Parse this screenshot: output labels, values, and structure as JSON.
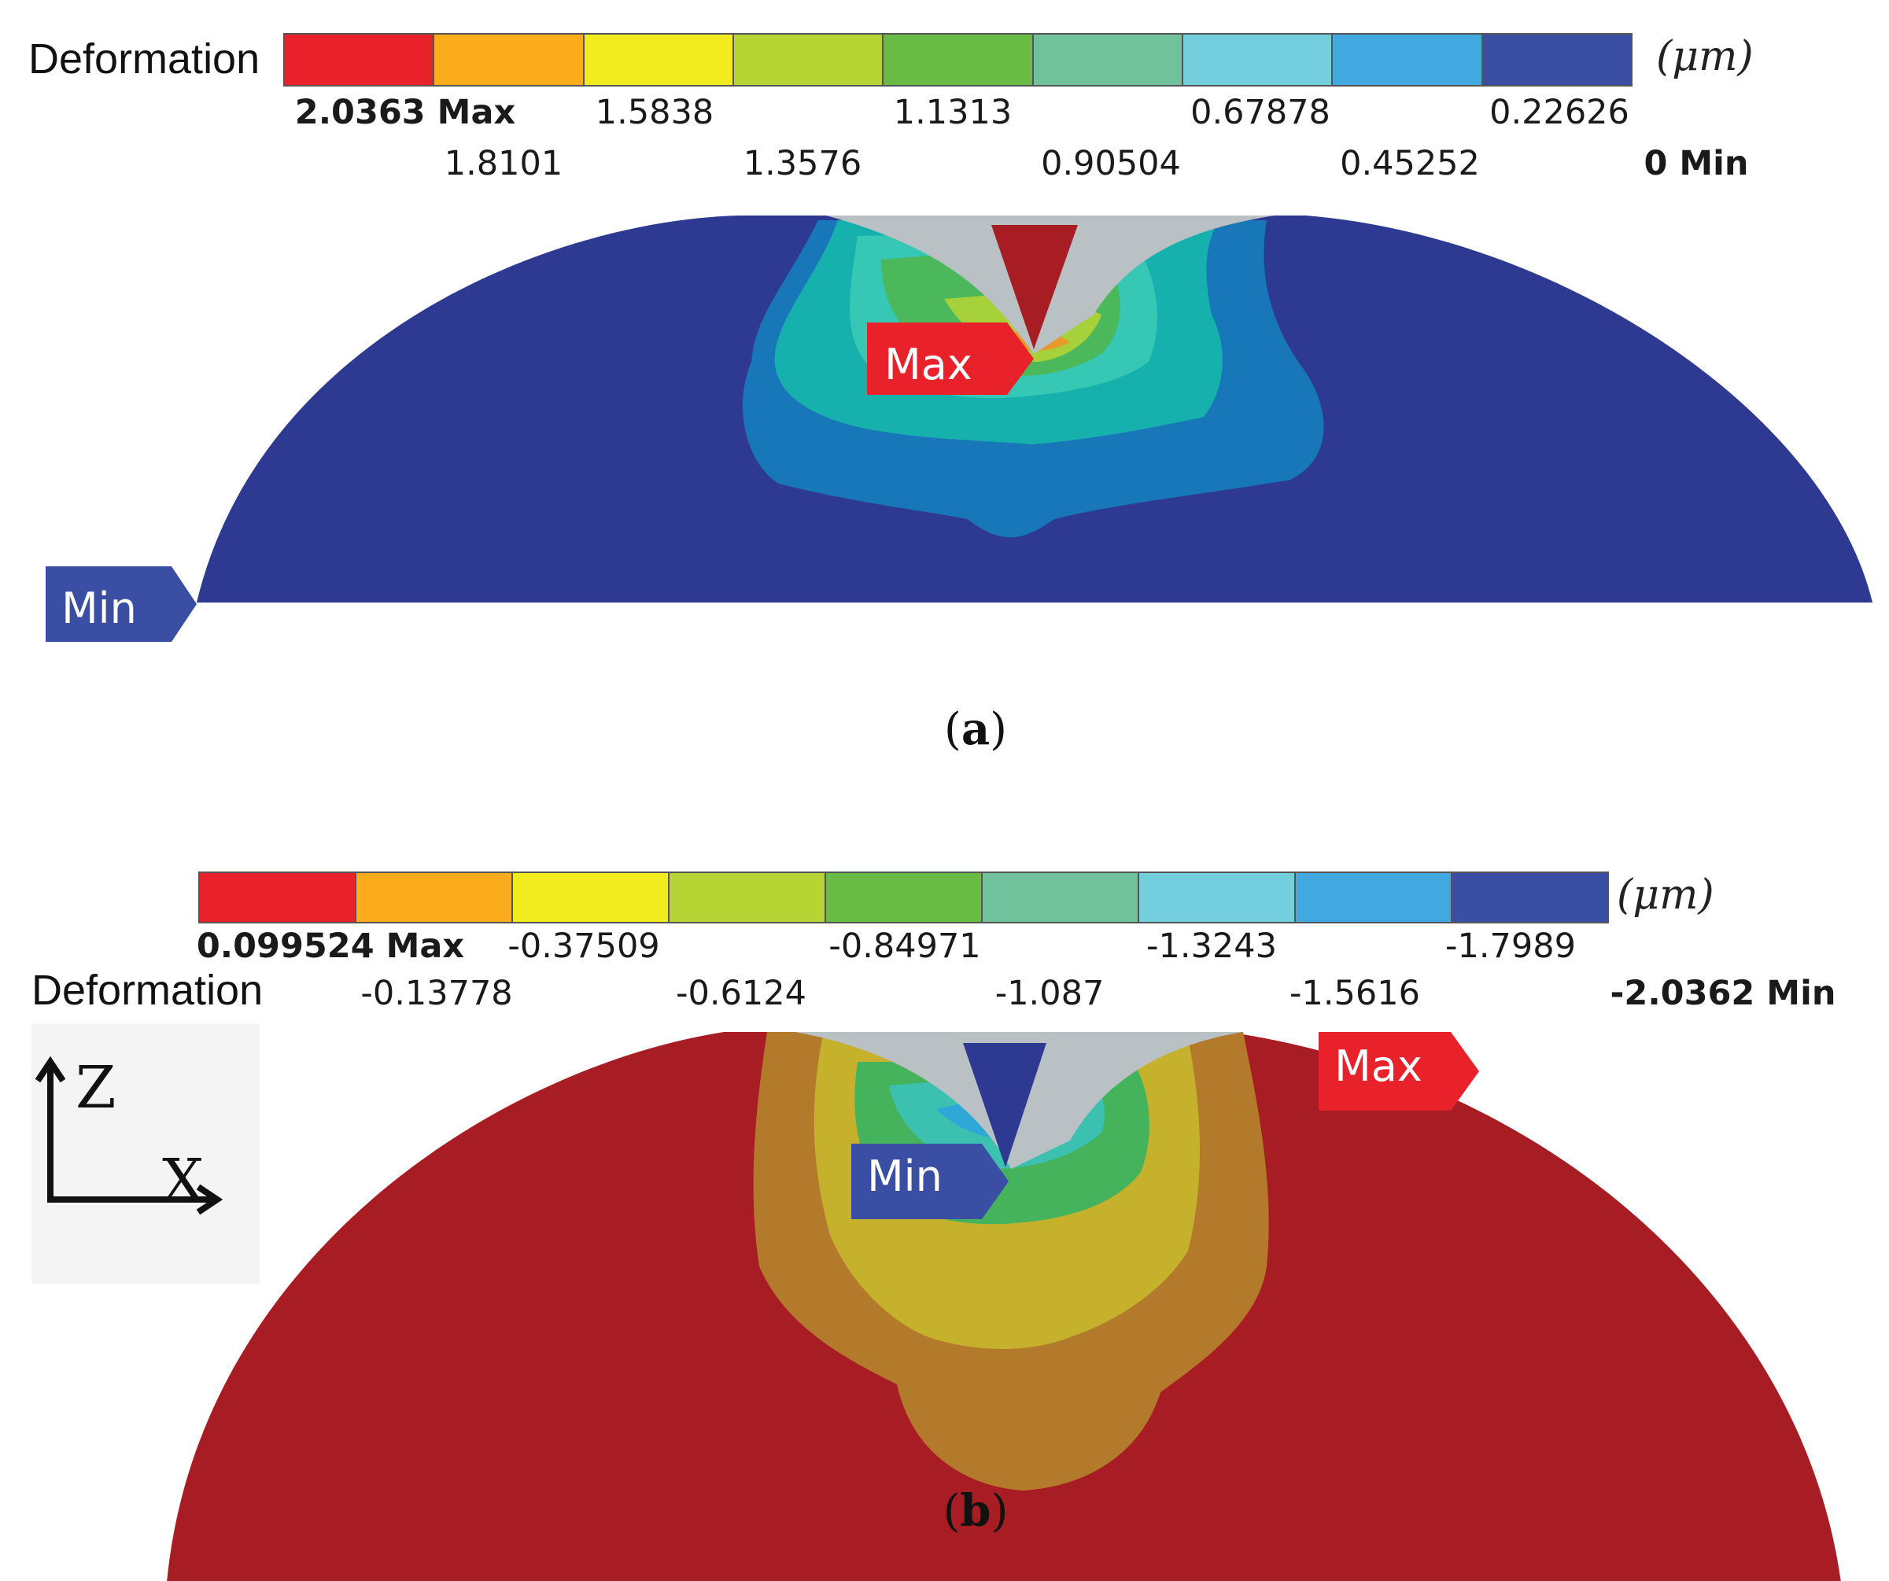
{
  "colors": {
    "scale": [
      "#e8212a",
      "#fbac1c",
      "#f2ec1e",
      "#b6d434",
      "#6abb45",
      "#70c29c",
      "#73cfde",
      "#41a8e0",
      "#3a4fa3"
    ],
    "max_label": "#e8212a",
    "min_label": "#3a4fa3",
    "tool": "#b9c1c5"
  },
  "panel_a": {
    "title": "Deformation",
    "unit": "(μm)",
    "ticks_upper": [
      "2.0363 Max",
      "1.5838",
      "1.1313",
      "0.67878",
      "0.22626"
    ],
    "ticks_lower": [
      "1.8101",
      "1.3576",
      "0.90504",
      "0.45252",
      "0 Min"
    ],
    "max_tag": "Max",
    "min_tag": "Min",
    "caption_open": "(",
    "caption_letter": "a",
    "caption_close": ")"
  },
  "panel_b": {
    "title": "Deformation",
    "unit": "(μm)",
    "ticks_upper": [
      "0.099524 Max",
      "-0.37509",
      "-0.84971",
      "-1.3243",
      "-1.7989"
    ],
    "ticks_lower": [
      "-0.13778",
      "-0.6124",
      "-1.087",
      "-1.5616",
      "-2.0362 Min"
    ],
    "max_tag": "Max",
    "min_tag": "Min",
    "axis_z": "Z",
    "axis_x": "X",
    "caption_open": "(",
    "caption_letter": "b",
    "caption_close": ")"
  }
}
